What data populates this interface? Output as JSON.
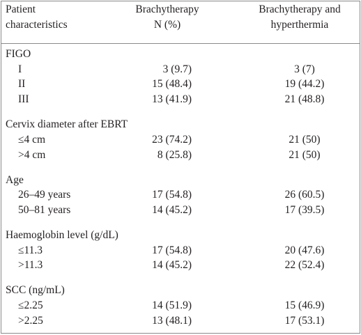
{
  "table": {
    "header": [
      [
        "Patient",
        "characteristics"
      ],
      [
        "Brachytherapy",
        "N (%)"
      ],
      [
        "Brachytherapy and",
        "hyperthermia"
      ]
    ],
    "sections": [
      {
        "title": "FIGO",
        "rows": [
          [
            "I",
            "3 (9.7)",
            "3 (7)"
          ],
          [
            "II",
            "15 (48.4)",
            "19 (44.2)"
          ],
          [
            "III",
            "13 (41.9)",
            "21 (48.8)"
          ]
        ]
      },
      {
        "title": "Cervix diameter after EBRT",
        "rows": [
          [
            "≤4 cm",
            "23 (74.2)",
            "21 (50)"
          ],
          [
            ">4 cm",
            "8 (25.8)",
            "21 (50)"
          ]
        ]
      },
      {
        "title": "Age",
        "rows": [
          [
            "26–49 years",
            "17 (54.8)",
            "26 (60.5)"
          ],
          [
            "50–81 years",
            "14 (45.2)",
            "17 (39.5)"
          ]
        ]
      },
      {
        "title": "Haemoglobin level (g/dL)",
        "rows": [
          [
            "≤11.3",
            "17 (54.8)",
            "20 (47.6)"
          ],
          [
            ">11.3",
            "14 (45.2)",
            "22 (52.4)"
          ]
        ]
      },
      {
        "title": "SCC (ng/mL)",
        "rows": [
          [
            "≤2.25",
            "14 (51.9)",
            "15 (46.9)"
          ],
          [
            ">2.25",
            "13 (48.1)",
            "17 (53.1)"
          ]
        ]
      }
    ]
  }
}
